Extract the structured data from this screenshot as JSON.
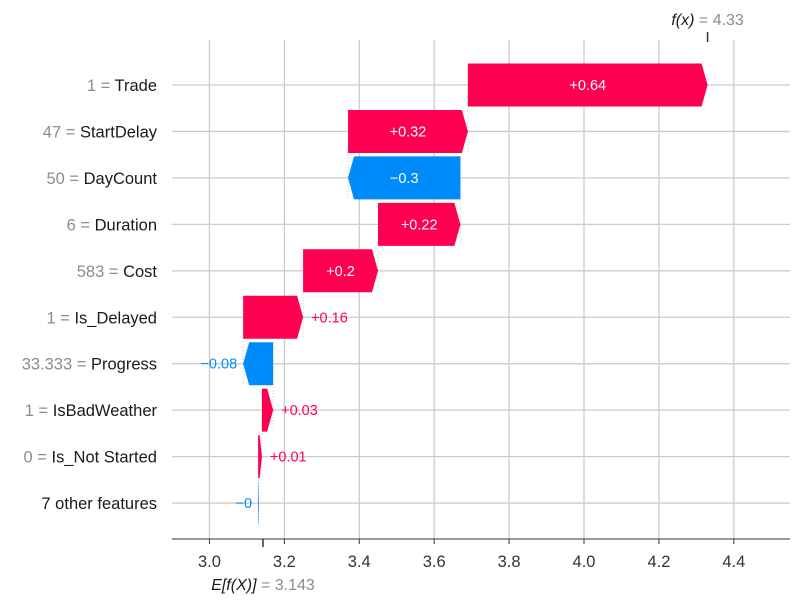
{
  "chart_data": {
    "type": "waterfall",
    "base_value": 3.143,
    "base_value_label": "3.143",
    "output_value": 4.33,
    "output_value_label": "4.33",
    "base_symbol": "E[f(X)]",
    "output_symbol": "f(x)",
    "xlim": [
      2.9,
      4.55
    ],
    "xticks": [
      3.0,
      3.2,
      3.4,
      3.6,
      3.8,
      4.0,
      4.2,
      4.4
    ],
    "xtick_labels": [
      "3.0",
      "3.2",
      "3.4",
      "3.6",
      "3.8",
      "4.0",
      "4.2",
      "4.4"
    ],
    "grid": "vertical",
    "features": [
      {
        "value": "1",
        "name": "Trade",
        "contribution": 0.64,
        "label": "+0.64"
      },
      {
        "value": "47",
        "name": "StartDelay",
        "contribution": 0.32,
        "label": "+0.32"
      },
      {
        "value": "50",
        "name": "DayCount",
        "contribution": -0.3,
        "label": "−0.3"
      },
      {
        "value": "6",
        "name": "Duration",
        "contribution": 0.22,
        "label": "+0.22"
      },
      {
        "value": "583",
        "name": "Cost",
        "contribution": 0.2,
        "label": "+0.2"
      },
      {
        "value": "1",
        "name": "Is_Delayed",
        "contribution": 0.16,
        "label": "+0.16"
      },
      {
        "value": "33.333",
        "name": "Progress",
        "contribution": -0.08,
        "label": "−0.08"
      },
      {
        "value": "1",
        "name": "IsBadWeather",
        "contribution": 0.03,
        "label": "+0.03"
      },
      {
        "value": "0",
        "name": "Is_Not Started",
        "contribution": 0.01,
        "label": "+0.01"
      },
      {
        "value": "",
        "name": "7 other features",
        "contribution": -0.002,
        "label": "−0"
      }
    ],
    "colors": {
      "positive": "#ff0051",
      "negative": "#008bfb",
      "grid": "#cccccc",
      "axis": "#333333",
      "muted": "#8c8c8c"
    }
  }
}
